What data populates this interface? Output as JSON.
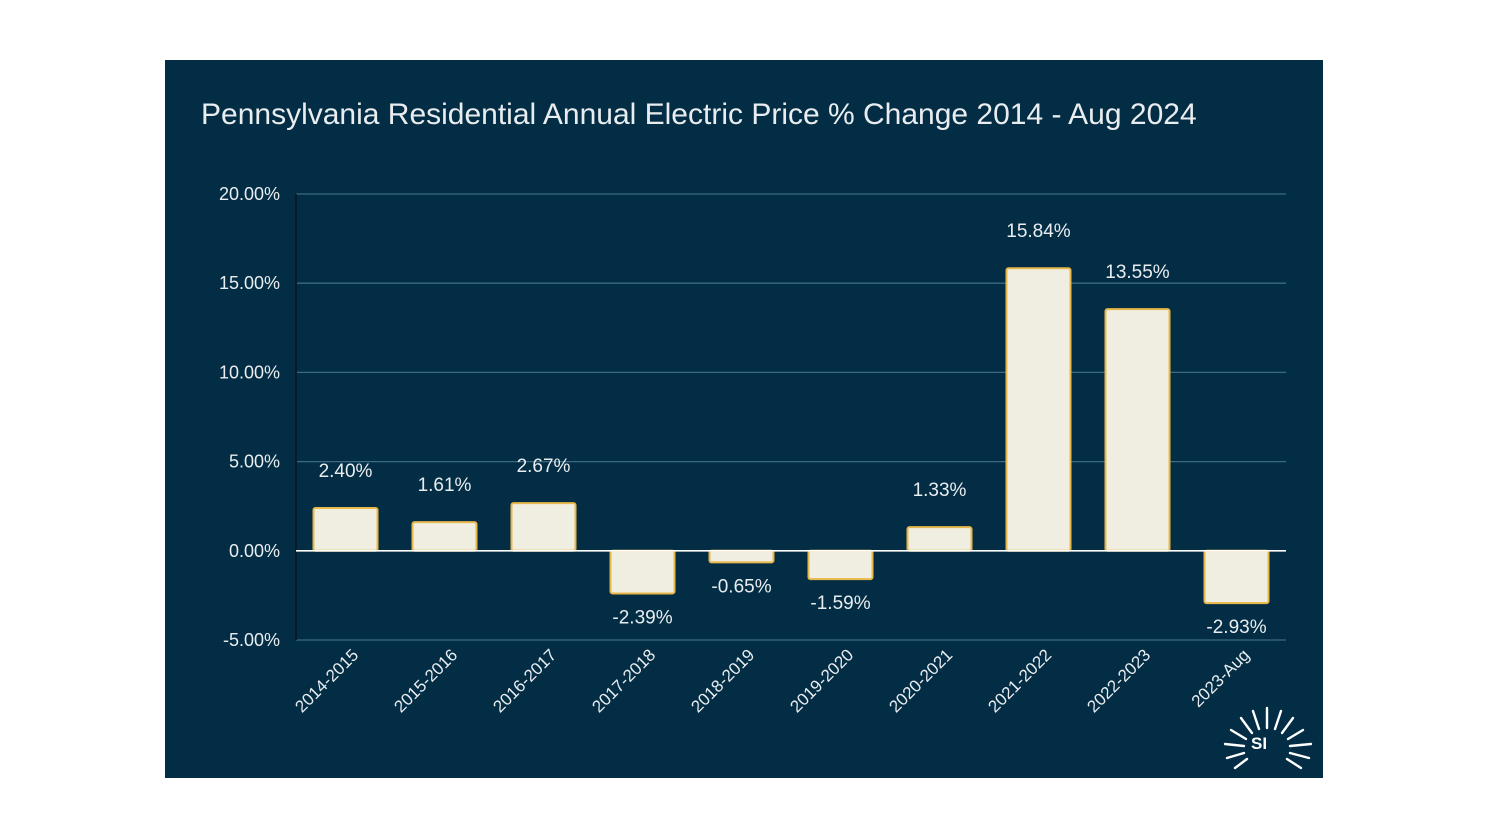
{
  "chart_data": {
    "type": "bar",
    "title": "Pennsylvania Residential Annual Electric Price % Change 2014 - Aug 2024",
    "categories": [
      "2014-2015",
      "2015-2016",
      "2016-2017",
      "2017-2018",
      "2018-2019",
      "2019-2020",
      "2020-2021",
      "2021-2022",
      "2022-2023",
      "2023-Aug"
    ],
    "values": [
      2.4,
      1.61,
      2.67,
      -2.39,
      -0.65,
      -1.59,
      1.33,
      15.84,
      13.55,
      -2.93
    ],
    "data_labels": [
      "2.40%",
      "1.61%",
      "2.67%",
      "-2.39%",
      "-0.65%",
      "-1.59%",
      "1.33%",
      "15.84%",
      "13.55%",
      "-2.93%"
    ],
    "ylim": [
      -5,
      20
    ],
    "yticks": [
      20,
      15,
      10,
      5,
      0,
      -5
    ],
    "ytick_labels": [
      "20.00%",
      "15.00%",
      "10.00%",
      "5.00%",
      "0.00%",
      "-5.00%"
    ],
    "xlabel": "",
    "ylabel": "",
    "grid": true,
    "legend": "none"
  },
  "logo": {
    "text": "SI"
  },
  "colors": {
    "background": "#032d44",
    "bar_fill": "#efeee1",
    "bar_stroke": "#e8b84a",
    "gridline": "#3c6a80",
    "zero_line": "#ffffff",
    "text": "#e9edf0"
  }
}
